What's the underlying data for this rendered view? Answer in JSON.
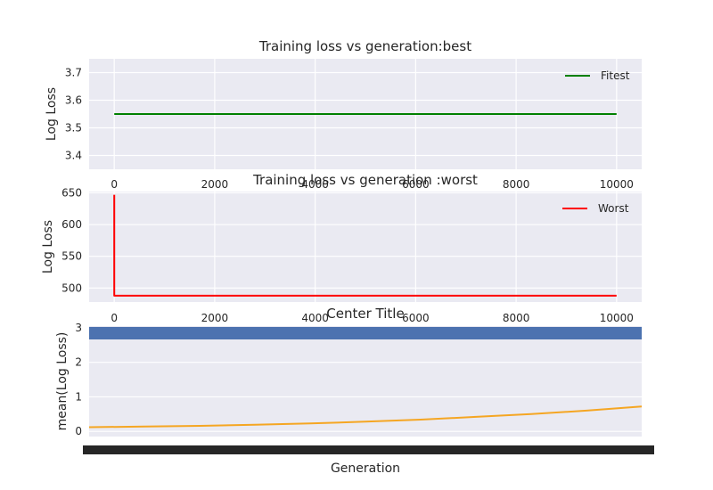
{
  "chart_data": [
    {
      "type": "line",
      "title": "Training loss vs generation:best",
      "xlabel": "",
      "ylabel": "Log Loss",
      "xlim": [
        -500,
        10500
      ],
      "ylim": [
        3.35,
        3.75
      ],
      "xticks": [
        0,
        2000,
        4000,
        6000,
        8000,
        10000
      ],
      "xtick_labels": [
        "0",
        "2000",
        "4000",
        "6000",
        "8000",
        "10000"
      ],
      "yticks": [
        3.4,
        3.5,
        3.6,
        3.7
      ],
      "ytick_labels": [
        "3.4",
        "3.5",
        "3.6",
        "3.7"
      ],
      "grid": true,
      "legend_position": "top-right",
      "series": [
        {
          "name": "Fitest",
          "color": "#008000",
          "x": [
            0,
            10000
          ],
          "y": [
            3.55,
            3.55
          ]
        }
      ]
    },
    {
      "type": "line",
      "title": "Training loss vs generation :worst",
      "xlabel": "",
      "ylabel": "Log Loss",
      "xlim": [
        -500,
        10500
      ],
      "ylim": [
        478,
        652
      ],
      "xticks": [
        0,
        2000,
        4000,
        6000,
        8000,
        10000
      ],
      "xtick_labels": [
        "0",
        "2000",
        "4000",
        "6000",
        "8000",
        "10000"
      ],
      "yticks": [
        500,
        550,
        600,
        650
      ],
      "ytick_labels": [
        "500",
        "550",
        "600",
        "650"
      ],
      "grid": true,
      "legend_position": "top-right",
      "series": [
        {
          "name": "Worst",
          "color": "#ff0000",
          "x": [
            0,
            0,
            1,
            10000
          ],
          "y": [
            647,
            500,
            488,
            488
          ]
        }
      ]
    },
    {
      "type": "line",
      "title": "Center Title",
      "xlabel": "Generation",
      "ylabel": "mean(Log Loss)",
      "xlim": [
        0,
        10000
      ],
      "ylim": [
        -0.15,
        3.05
      ],
      "yticks": [
        0,
        1,
        2,
        3
      ],
      "ytick_labels": [
        "0",
        "1",
        "2",
        "3"
      ],
      "grid": true,
      "header_bar_color": "#4c72b0",
      "xtick_labels_overlapping": true,
      "series": [
        {
          "color": "#f5a623",
          "x": [
            0,
            1000,
            2000,
            3000,
            4000,
            5000,
            6000,
            7000,
            8000,
            9000,
            10000
          ],
          "y": [
            0.12,
            0.14,
            0.16,
            0.19,
            0.23,
            0.28,
            0.34,
            0.42,
            0.5,
            0.6,
            0.72
          ]
        }
      ]
    }
  ]
}
